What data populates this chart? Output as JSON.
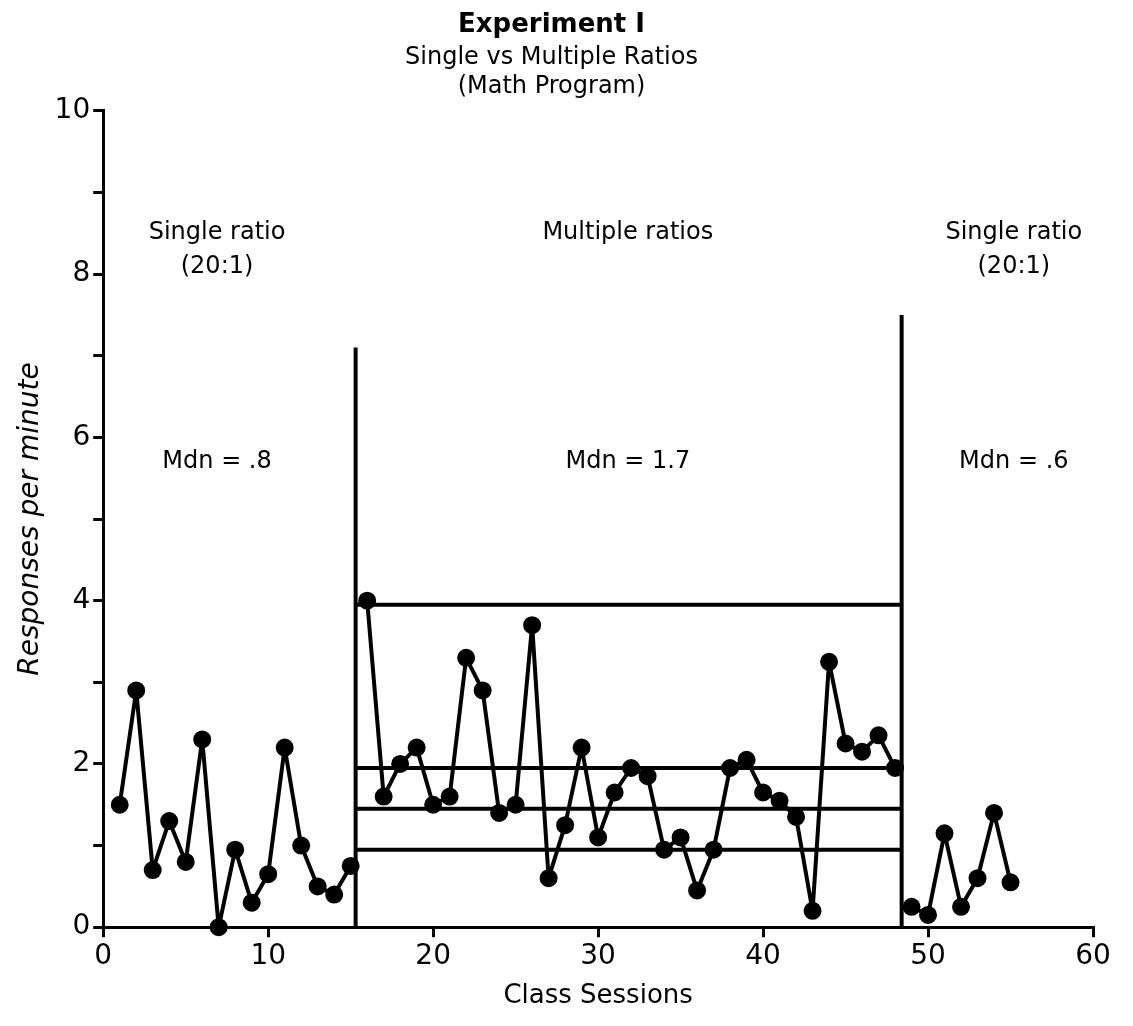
{
  "chart_data": {
    "type": "line",
    "title": "Experiment I",
    "subtitle": "Single vs Multiple Ratios\n(Math Program)",
    "xlabel": "Class Sessions",
    "ylabel": "Responses per minute",
    "xlim": [
      0,
      60
    ],
    "xticks": [
      0,
      10,
      20,
      30,
      40,
      50,
      60
    ],
    "ylim": [
      0,
      10
    ],
    "yticks": [
      0,
      {
        "value": 1,
        "label": null
      },
      2,
      {
        "value": 3,
        "label": null
      },
      4,
      {
        "value": 5,
        "label": null
      },
      6,
      {
        "value": 7,
        "label": null
      },
      8,
      {
        "value": 9,
        "label": null
      },
      10
    ],
    "grid": false,
    "legend": false,
    "marker": "circle",
    "line_style": "solid",
    "series": [
      {
        "color": "#000000",
        "x": [
          1,
          2,
          3,
          4,
          5,
          6,
          7,
          8,
          9,
          10,
          11,
          12,
          13,
          14,
          15
        ],
        "values": [
          1.5,
          2.9,
          0.7,
          1.3,
          0.8,
          2.3,
          0.0,
          0.95,
          0.3,
          0.65,
          2.2,
          1.0,
          0.5,
          0.4,
          0.75
        ]
      },
      {
        "color": "#000000",
        "x": [
          16,
          17,
          18,
          19,
          20,
          21,
          22,
          23,
          24,
          25,
          26,
          27,
          28,
          29,
          30,
          31,
          32,
          33,
          34,
          35,
          36,
          37,
          38,
          39,
          40,
          41,
          42,
          43,
          44,
          45,
          46,
          47,
          48
        ],
        "values": [
          4.0,
          1.6,
          2.0,
          2.2,
          1.5,
          1.6,
          3.3,
          2.9,
          1.4,
          1.5,
          3.7,
          0.6,
          1.25,
          2.2,
          1.1,
          1.65,
          1.95,
          1.85,
          0.95,
          1.1,
          0.45,
          0.95,
          1.95,
          2.05,
          1.65,
          1.55,
          1.35,
          0.2,
          3.25,
          2.25,
          2.15,
          2.35,
          1.95
        ]
      },
      {
        "color": "#000000",
        "x": [
          49,
          50,
          51,
          52,
          53,
          54,
          55
        ],
        "values": [
          0.25,
          0.15,
          1.15,
          0.25,
          0.6,
          1.4,
          0.55
        ]
      },
      {
        "color": "#000000",
        "marker": "none",
        "x": [
          15.3,
          15.3
        ],
        "values": [
          0,
          7.1
        ]
      },
      {
        "color": "#000000",
        "marker": "none",
        "x": [
          48.4,
          48.4
        ],
        "values": [
          0,
          7.5
        ]
      },
      {
        "color": "#000000",
        "marker": "none",
        "x": [
          15.3,
          48.4
        ],
        "values": [
          3.95,
          3.95
        ]
      },
      {
        "color": "#000000",
        "marker": "none",
        "x": [
          15.3,
          48.4
        ],
        "values": [
          1.95,
          1.95
        ]
      },
      {
        "color": "#000000",
        "marker": "none",
        "x": [
          15.3,
          48.4
        ],
        "values": [
          1.45,
          1.45
        ]
      },
      {
        "color": "#000000",
        "marker": "none",
        "x": [
          15.3,
          48.4
        ],
        "values": [
          0.95,
          0.95
        ]
      }
    ],
    "annotations": [
      "Single ratio\n(20:1)",
      "Mdn = .8",
      "Multiple ratios",
      "Mdn = 1.7",
      "Single ratio\n(20:1)",
      "Mdn = .6"
    ]
  }
}
